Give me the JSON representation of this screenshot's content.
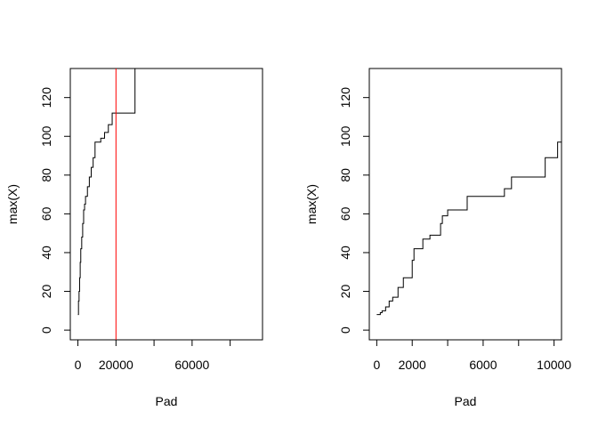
{
  "chart_data": [
    {
      "type": "line",
      "xlabel": "Pad",
      "ylabel": "max(X)",
      "xlim": [
        -4000,
        97000
      ],
      "ylim": [
        -5,
        135
      ],
      "x_ticks": [
        0,
        20000,
        40000,
        60000,
        80000
      ],
      "x_tick_labels": [
        "0",
        "20000",
        "",
        "60000",
        ""
      ],
      "y_ticks": [
        0,
        20,
        40,
        60,
        80,
        100,
        120
      ],
      "y_tick_labels": [
        "0",
        "20",
        "40",
        "60",
        "80",
        "100",
        "120"
      ],
      "grid": false,
      "series": [
        {
          "step": true,
          "color": "#000000",
          "x": [
            0,
            300,
            600,
            900,
            1200,
            1500,
            2000,
            2500,
            3000,
            3500,
            4000,
            5000,
            6000,
            7000,
            8000,
            9000,
            10000,
            12000,
            14000,
            16000,
            18000,
            20000,
            30000,
            30000
          ],
          "y": [
            8,
            15,
            20,
            27,
            35,
            42,
            48,
            55,
            62,
            65,
            69,
            74,
            79,
            84,
            89,
            97,
            97,
            99,
            102,
            106,
            112,
            112,
            112,
            135
          ]
        }
      ],
      "vlines": [
        {
          "x": 20000,
          "color": "#ff0000"
        }
      ]
    },
    {
      "type": "line",
      "xlabel": "Pad",
      "ylabel": "max(X)",
      "xlim": [
        -420,
        10420
      ],
      "ylim": [
        -5,
        135
      ],
      "x_ticks": [
        0,
        2000,
        4000,
        6000,
        8000,
        10000
      ],
      "x_tick_labels": [
        "0",
        "2000",
        "",
        "6000",
        "",
        "10000"
      ],
      "y_ticks": [
        0,
        20,
        40,
        60,
        80,
        100,
        120
      ],
      "y_tick_labels": [
        "0",
        "20",
        "40",
        "60",
        "80",
        "100",
        "120"
      ],
      "grid": false,
      "series": [
        {
          "step": true,
          "color": "#000000",
          "x": [
            0,
            200,
            300,
            500,
            700,
            900,
            1200,
            1500,
            2000,
            2100,
            2600,
            3000,
            3600,
            3700,
            4000,
            5100,
            7200,
            7600,
            9500,
            10200,
            10420
          ],
          "y": [
            8,
            9,
            10,
            12,
            15,
            17,
            22,
            27,
            36,
            42,
            47,
            49,
            55,
            59,
            62,
            69,
            73,
            79,
            89,
            97,
            97
          ]
        }
      ],
      "vlines": []
    }
  ]
}
